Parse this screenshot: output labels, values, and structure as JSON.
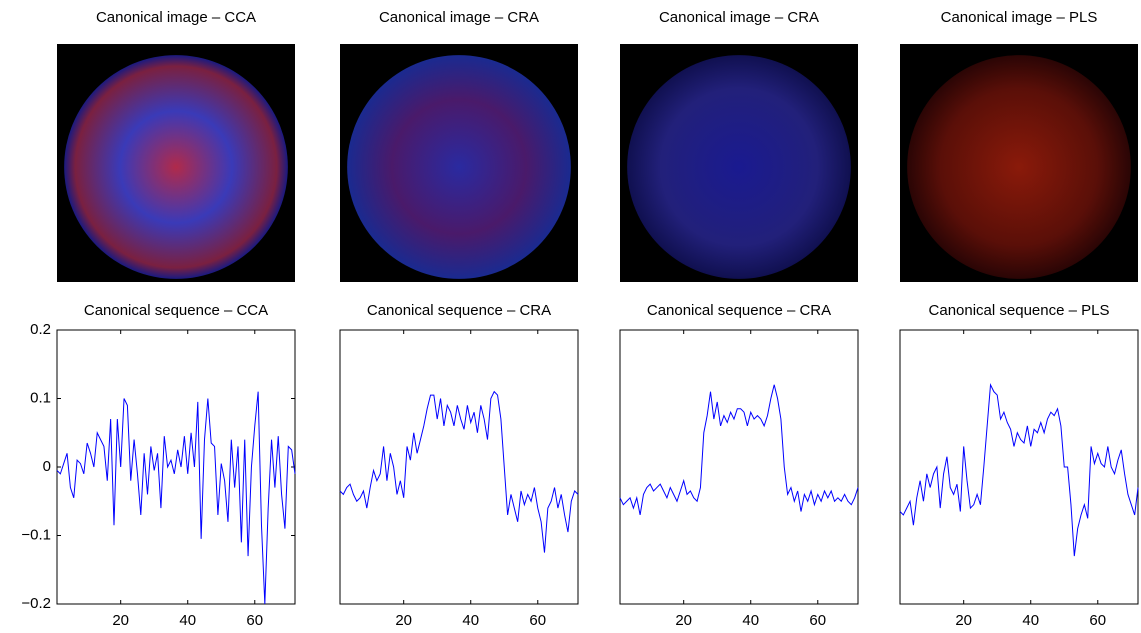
{
  "chart_data": [
    {
      "type": "image",
      "title": "Canonical image – CCA"
    },
    {
      "type": "image",
      "title": "Canonical image – CRA"
    },
    {
      "type": "image",
      "title": "Canonical image – CRA"
    },
    {
      "type": "image",
      "title": "Canonical image – PLS"
    },
    {
      "type": "line",
      "title": "Canonical sequence – CCA",
      "x": [
        1,
        2,
        3,
        4,
        5,
        6,
        7,
        8,
        9,
        10,
        11,
        12,
        13,
        14,
        15,
        16,
        17,
        18,
        19,
        20,
        21,
        22,
        23,
        24,
        25,
        26,
        27,
        28,
        29,
        30,
        31,
        32,
        33,
        34,
        35,
        36,
        37,
        38,
        39,
        40,
        41,
        42,
        43,
        44,
        45,
        46,
        47,
        48,
        49,
        50,
        51,
        52,
        53,
        54,
        55,
        56,
        57,
        58,
        59,
        60,
        61,
        62,
        63,
        64,
        65,
        66,
        67,
        68,
        69,
        70,
        71,
        72
      ],
      "series": [
        {
          "color": "#0000ff",
          "values": [
            -0.005,
            -0.01,
            0.005,
            0.02,
            -0.03,
            -0.045,
            0.01,
            0.005,
            -0.01,
            0.035,
            0.02,
            0.0,
            0.05,
            0.04,
            0.03,
            -0.02,
            0.07,
            -0.085,
            0.07,
            0.0,
            0.1,
            0.09,
            -0.02,
            0.04,
            -0.01,
            -0.07,
            0.02,
            -0.04,
            0.03,
            -0.005,
            0.02,
            -0.06,
            0.045,
            0.0,
            0.01,
            -0.01,
            0.025,
            0.0,
            0.045,
            -0.01,
            0.05,
            0.0,
            0.095,
            -0.105,
            0.04,
            0.1,
            0.035,
            0.03,
            -0.07,
            0.005,
            -0.02,
            -0.08,
            0.04,
            -0.03,
            0.03,
            -0.11,
            0.04,
            -0.13,
            0.0,
            0.06,
            0.11,
            -0.085,
            -0.2,
            -0.06,
            0.04,
            -0.03,
            0.045,
            -0.04,
            -0.09,
            0.03,
            0.025,
            -0.01
          ]
        }
      ],
      "xlim": [
        1,
        72
      ],
      "xticks": [
        20,
        40,
        60
      ],
      "ylim": [
        -0.2,
        0.2
      ],
      "yticks": [
        {
          "value": -0.2,
          "label": "−0.2"
        },
        {
          "value": -0.1,
          "label": "−0.1"
        },
        0,
        0.1,
        0.2
      ]
    },
    {
      "type": "line",
      "title": "Canonical sequence – CRA",
      "x": [
        1,
        2,
        3,
        4,
        5,
        6,
        7,
        8,
        9,
        10,
        11,
        12,
        13,
        14,
        15,
        16,
        17,
        18,
        19,
        20,
        21,
        22,
        23,
        24,
        25,
        26,
        27,
        28,
        29,
        30,
        31,
        32,
        33,
        34,
        35,
        36,
        37,
        38,
        39,
        40,
        41,
        42,
        43,
        44,
        45,
        46,
        47,
        48,
        49,
        50,
        51,
        52,
        53,
        54,
        55,
        56,
        57,
        58,
        59,
        60,
        61,
        62,
        63,
        64,
        65,
        66,
        67,
        68,
        69,
        70,
        71,
        72
      ],
      "series": [
        {
          "color": "#0000ff",
          "values": [
            -0.035,
            -0.04,
            -0.03,
            -0.025,
            -0.04,
            -0.05,
            -0.045,
            -0.035,
            -0.06,
            -0.03,
            -0.005,
            -0.02,
            -0.01,
            0.03,
            -0.02,
            0.02,
            0.0,
            -0.04,
            -0.02,
            -0.045,
            0.03,
            0.01,
            0.05,
            0.02,
            0.04,
            0.06,
            0.085,
            0.105,
            0.105,
            0.07,
            0.1,
            0.06,
            0.09,
            0.08,
            0.06,
            0.09,
            0.07,
            0.055,
            0.09,
            0.065,
            0.08,
            0.05,
            0.09,
            0.07,
            0.04,
            0.1,
            0.11,
            0.105,
            0.07,
            0.0,
            -0.07,
            -0.04,
            -0.06,
            -0.08,
            -0.035,
            -0.055,
            -0.04,
            -0.05,
            -0.03,
            -0.06,
            -0.08,
            -0.125,
            -0.06,
            -0.05,
            -0.03,
            -0.06,
            -0.04,
            -0.07,
            -0.095,
            -0.05,
            -0.035,
            -0.04
          ]
        }
      ],
      "xlim": [
        1,
        72
      ],
      "xticks": [
        20,
        40,
        60
      ],
      "ylim": [
        -0.2,
        0.2
      ]
    },
    {
      "type": "line",
      "title": "Canonical sequence – CRA",
      "x": [
        1,
        2,
        3,
        4,
        5,
        6,
        7,
        8,
        9,
        10,
        11,
        12,
        13,
        14,
        15,
        16,
        17,
        18,
        19,
        20,
        21,
        22,
        23,
        24,
        25,
        26,
        27,
        28,
        29,
        30,
        31,
        32,
        33,
        34,
        35,
        36,
        37,
        38,
        39,
        40,
        41,
        42,
        43,
        44,
        45,
        46,
        47,
        48,
        49,
        50,
        51,
        52,
        53,
        54,
        55,
        56,
        57,
        58,
        59,
        60,
        61,
        62,
        63,
        64,
        65,
        66,
        67,
        68,
        69,
        70,
        71,
        72
      ],
      "series": [
        {
          "color": "#0000ff",
          "values": [
            -0.045,
            -0.055,
            -0.05,
            -0.045,
            -0.06,
            -0.045,
            -0.07,
            -0.04,
            -0.03,
            -0.025,
            -0.035,
            -0.03,
            -0.025,
            -0.035,
            -0.045,
            -0.03,
            -0.04,
            -0.05,
            -0.035,
            -0.02,
            -0.04,
            -0.035,
            -0.045,
            -0.05,
            -0.03,
            0.05,
            0.075,
            0.11,
            0.07,
            0.095,
            0.06,
            0.075,
            0.065,
            0.08,
            0.07,
            0.085,
            0.085,
            0.08,
            0.06,
            0.08,
            0.07,
            0.075,
            0.07,
            0.06,
            0.075,
            0.1,
            0.12,
            0.1,
            0.07,
            0.0,
            -0.04,
            -0.03,
            -0.05,
            -0.035,
            -0.065,
            -0.04,
            -0.05,
            -0.035,
            -0.055,
            -0.04,
            -0.05,
            -0.035,
            -0.045,
            -0.035,
            -0.05,
            -0.045,
            -0.05,
            -0.04,
            -0.05,
            -0.055,
            -0.045,
            -0.03
          ]
        }
      ],
      "xlim": [
        1,
        72
      ],
      "xticks": [
        20,
        40,
        60
      ],
      "ylim": [
        -0.2,
        0.2
      ]
    },
    {
      "type": "line",
      "title": "Canonical sequence – PLS",
      "x": [
        1,
        2,
        3,
        4,
        5,
        6,
        7,
        8,
        9,
        10,
        11,
        12,
        13,
        14,
        15,
        16,
        17,
        18,
        19,
        20,
        21,
        22,
        23,
        24,
        25,
        26,
        27,
        28,
        29,
        30,
        31,
        32,
        33,
        34,
        35,
        36,
        37,
        38,
        39,
        40,
        41,
        42,
        43,
        44,
        45,
        46,
        47,
        48,
        49,
        50,
        51,
        52,
        53,
        54,
        55,
        56,
        57,
        58,
        59,
        60,
        61,
        62,
        63,
        64,
        65,
        66,
        67,
        68,
        69,
        70,
        71,
        72
      ],
      "series": [
        {
          "color": "#0000ff",
          "values": [
            -0.065,
            -0.07,
            -0.06,
            -0.05,
            -0.085,
            -0.045,
            -0.02,
            -0.05,
            -0.01,
            -0.03,
            -0.01,
            0.0,
            -0.06,
            -0.01,
            0.015,
            -0.03,
            -0.04,
            -0.025,
            -0.065,
            0.03,
            -0.02,
            -0.06,
            -0.055,
            -0.04,
            -0.055,
            0.0,
            0.06,
            0.12,
            0.11,
            0.105,
            0.07,
            0.08,
            0.065,
            0.055,
            0.03,
            0.05,
            0.04,
            0.035,
            0.06,
            0.03,
            0.055,
            0.05,
            0.065,
            0.05,
            0.07,
            0.08,
            0.075,
            0.085,
            0.06,
            0.0,
            0.0,
            -0.055,
            -0.13,
            -0.09,
            -0.07,
            -0.055,
            -0.075,
            0.03,
            0.005,
            0.02,
            0.005,
            0.0,
            0.03,
            0.0,
            -0.01,
            0.01,
            0.025,
            -0.01,
            -0.04,
            -0.055,
            -0.07,
            -0.03
          ]
        }
      ],
      "xlim": [
        1,
        72
      ],
      "xticks": [
        20,
        40,
        60
      ],
      "ylim": [
        -0.2,
        0.2
      ]
    }
  ]
}
